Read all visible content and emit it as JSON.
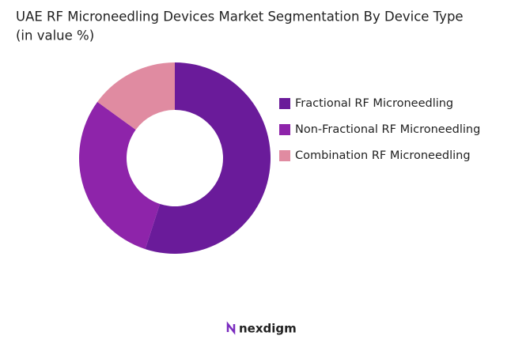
{
  "chart_data": {
    "type": "pie",
    "title": "UAE RF Microneedling Devices Market Segmentation By Device Type",
    "subtitle": "(in value %)",
    "categories": [
      "Fractional RF Microneedling",
      "Non-Fractional RF Microneedling",
      "Combination RF Microneedling"
    ],
    "values": [
      55,
      30,
      15
    ],
    "colors": [
      "#6a1b9a",
      "#8e24aa",
      "#e08ba1"
    ],
    "legend": "right"
  },
  "brand": "nexdigm"
}
